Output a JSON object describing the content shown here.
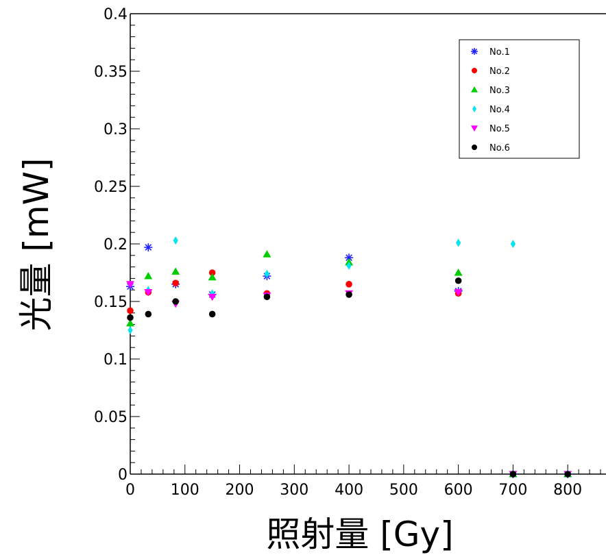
{
  "chart_data": {
    "type": "scatter",
    "title": "",
    "xlabel": "照射量 [Gy]",
    "ylabel": "光量 [mW]",
    "xlim": [
      0,
      870
    ],
    "ylim": [
      0,
      0.4
    ],
    "x_ticks": [
      0,
      100,
      200,
      300,
      400,
      500,
      600,
      700,
      800
    ],
    "x_tick_labels": [
      "0",
      "100",
      "200",
      "300",
      "400",
      "500",
      "600",
      "700",
      "800"
    ],
    "y_ticks": [
      0,
      0.05,
      0.1,
      0.15,
      0.2,
      0.25,
      0.3,
      0.35,
      0.4
    ],
    "y_tick_labels": [
      "0",
      "0.05",
      "0.1",
      "0.15",
      "0.2",
      "0.25",
      "0.3",
      "0.35",
      "0.4"
    ],
    "grid": false,
    "legend_position": "top-right",
    "series": [
      {
        "name": "No.1",
        "color": "#2020ff",
        "marker": "asterisk",
        "points": [
          [
            0,
            0.163
          ],
          [
            33,
            0.197
          ],
          [
            83,
            0.165
          ],
          [
            150,
            0.156
          ],
          [
            250,
            0.172
          ],
          [
            400,
            0.188
          ],
          [
            600,
            0.159
          ],
          [
            700,
            0.0
          ],
          [
            800,
            0.0
          ]
        ]
      },
      {
        "name": "No.2",
        "color": "#ff0000",
        "marker": "circle",
        "points": [
          [
            0,
            0.142
          ],
          [
            33,
            0.158
          ],
          [
            83,
            0.166
          ],
          [
            150,
            0.175
          ],
          [
            250,
            0.157
          ],
          [
            400,
            0.165
          ],
          [
            600,
            0.157
          ],
          [
            700,
            0.0
          ],
          [
            800,
            0.0
          ]
        ]
      },
      {
        "name": "No.3",
        "color": "#00cc00",
        "marker": "triangle",
        "points": [
          [
            0,
            0.131
          ],
          [
            33,
            0.172
          ],
          [
            83,
            0.176
          ],
          [
            150,
            0.171
          ],
          [
            250,
            0.191
          ],
          [
            400,
            0.184
          ],
          [
            600,
            0.175
          ],
          [
            700,
            0.0
          ],
          [
            800,
            0.0
          ]
        ]
      },
      {
        "name": "No.4",
        "color": "#00e5ee",
        "marker": "diamond",
        "points": [
          [
            0,
            0.125
          ],
          [
            33,
            0.16
          ],
          [
            83,
            0.203
          ],
          [
            150,
            0.157
          ],
          [
            250,
            0.174
          ],
          [
            400,
            0.181
          ],
          [
            600,
            0.201
          ],
          [
            700,
            0.2
          ],
          [
            800,
            0.0
          ]
        ]
      },
      {
        "name": "No.5",
        "color": "#ff00ff",
        "marker": "tri_down",
        "points": [
          [
            0,
            0.165
          ],
          [
            33,
            0.158
          ],
          [
            83,
            0.148
          ],
          [
            150,
            0.154
          ],
          [
            250,
            0.155
          ],
          [
            400,
            0.157
          ],
          [
            600,
            0.158
          ],
          [
            700,
            0.0
          ],
          [
            800,
            0.0
          ]
        ]
      },
      {
        "name": "No.6",
        "color": "#000000",
        "marker": "circle",
        "points": [
          [
            0,
            0.136
          ],
          [
            33,
            0.139
          ],
          [
            83,
            0.15
          ],
          [
            150,
            0.139
          ],
          [
            250,
            0.154
          ],
          [
            400,
            0.156
          ],
          [
            600,
            0.168
          ],
          [
            700,
            0.0
          ],
          [
            800,
            0.0
          ]
        ]
      }
    ]
  }
}
